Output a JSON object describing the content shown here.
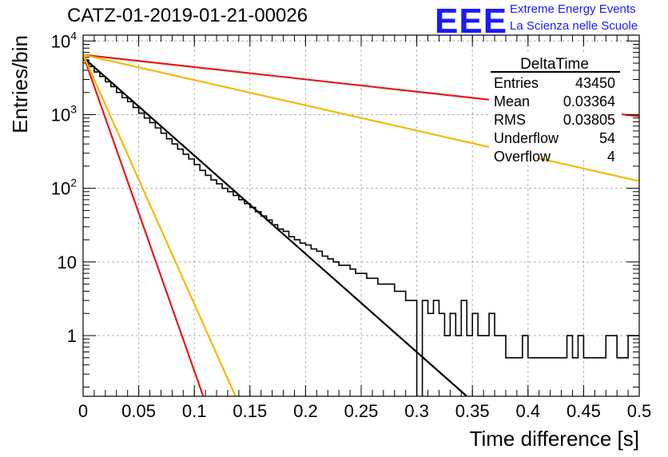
{
  "title": "CATZ-01-2019-01-21-00026",
  "logo": {
    "mark": "EEE",
    "line1": "Extreme Energy Events",
    "line2": "La Scienza nelle Scuole",
    "color": "#1a1aff"
  },
  "stats_box": {
    "title": "DeltaTime",
    "rows": [
      {
        "label": "Entries",
        "value": "43450"
      },
      {
        "label": "Mean",
        "value": "0.03364"
      },
      {
        "label": "RMS",
        "value": "0.03805"
      },
      {
        "label": "Underflow",
        "value": "54"
      },
      {
        "label": "Overflow",
        "value": "4"
      }
    ]
  },
  "chart_data": {
    "type": "line",
    "xlabel": "Time difference [s]",
    "ylabel": "Entries/bin",
    "xlim": [
      0,
      0.5
    ],
    "ylim": [
      0.15,
      12000
    ],
    "yscale": "log",
    "grid": true,
    "x_ticks": [
      "0",
      "0.05",
      "0.1",
      "0.15",
      "0.2",
      "0.25",
      "0.3",
      "0.35",
      "0.4",
      "0.45",
      "0.5"
    ],
    "y_ticks": [
      {
        "value": 1,
        "label": "1"
      },
      {
        "value": 10,
        "label": "10"
      },
      {
        "value": 100,
        "label": "10^2"
      },
      {
        "value": 1000,
        "label": "10^3"
      },
      {
        "value": 10000,
        "label": "10^4"
      }
    ],
    "histogram": {
      "bin_width": 0.005,
      "color": "#000000",
      "counts": [
        5500,
        4500,
        3800,
        3300,
        2800,
        2400,
        2000,
        1700,
        1500,
        1250,
        1050,
        900,
        780,
        660,
        560,
        470,
        400,
        340,
        290,
        250,
        210,
        175,
        150,
        130,
        115,
        100,
        90,
        80,
        70,
        62,
        55,
        48,
        42,
        37,
        32,
        28,
        26,
        22,
        20,
        18,
        17,
        15,
        14,
        12,
        11,
        10,
        9,
        9,
        8,
        7,
        7,
        6,
        6,
        5,
        5,
        5,
        4,
        4,
        3,
        3,
        0.1,
        3,
        2,
        3,
        2,
        1,
        2,
        1,
        3,
        1,
        2,
        1,
        1,
        2,
        1,
        1,
        0.5,
        0.5,
        0.5,
        1,
        0.5,
        0.5,
        0.5,
        0.5,
        0.5,
        0.5,
        0.5,
        1,
        0.5,
        1,
        0.5,
        0.5,
        0.5,
        0.5,
        1,
        1,
        0.5,
        0.5,
        1,
        1
      ],
      "underflow": 54,
      "overflow": 4
    },
    "fit_lines": [
      {
        "color": "#000000",
        "x": [
          0,
          0.345
        ],
        "y": [
          6000,
          0.15
        ]
      },
      {
        "color": "#e61919",
        "x": [
          0,
          0.5
        ],
        "y": [
          6500,
          950
        ]
      },
      {
        "color": "#f5b800",
        "x": [
          0,
          0.5
        ],
        "y": [
          6500,
          125
        ]
      },
      {
        "color": "#e61919",
        "x": [
          0,
          0.108
        ],
        "y": [
          6500,
          0.15
        ]
      },
      {
        "color": "#f5b800",
        "x": [
          0,
          0.137
        ],
        "y": [
          6500,
          0.15
        ]
      }
    ]
  }
}
